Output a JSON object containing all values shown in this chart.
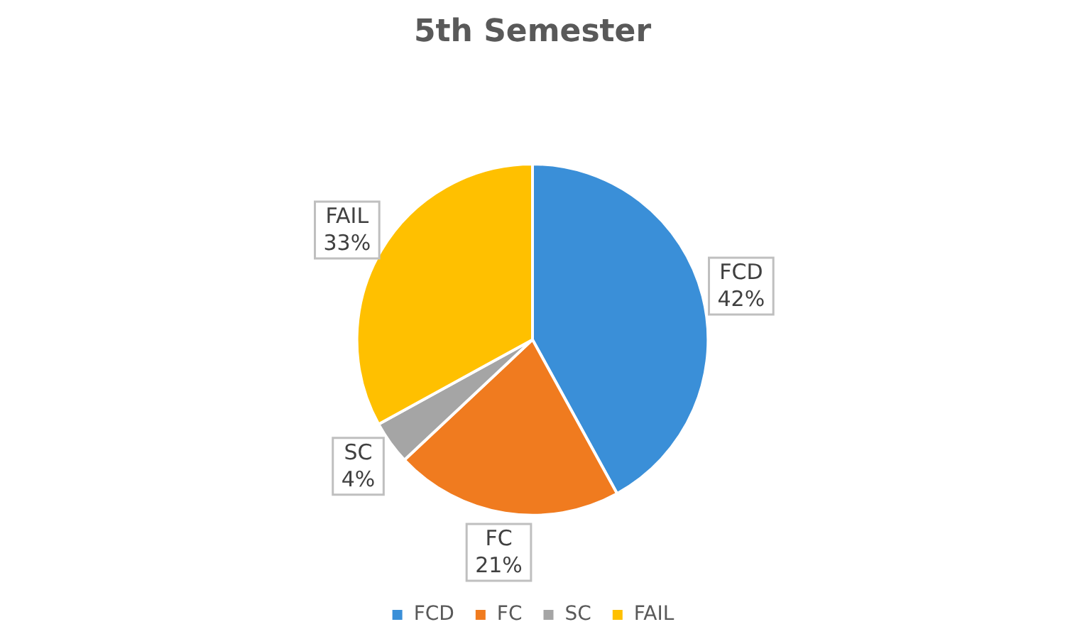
{
  "chart_data": {
    "type": "pie",
    "title": "5th Semester",
    "categories": [
      "FCD",
      "FC",
      "SC",
      "FAIL"
    ],
    "values": [
      42,
      21,
      4,
      33
    ],
    "colors": [
      "#3a8fd8",
      "#f07b1f",
      "#a5a5a5",
      "#ffc000"
    ],
    "value_labels": [
      "42%",
      "21%",
      "4%",
      "33%"
    ],
    "legend": "bottom"
  }
}
